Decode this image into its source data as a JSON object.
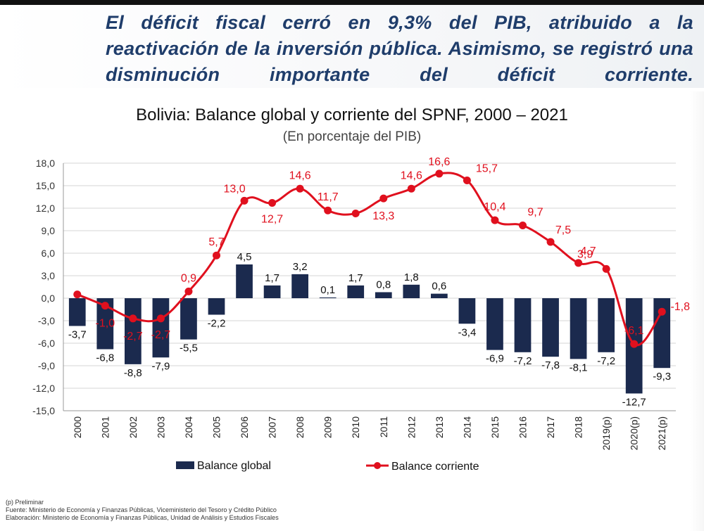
{
  "headline": "El déficit fiscal cerró en 9,3% del PIB, atribuido a la reactivación de la inversión pública. Asimismo, se registró una disminución importante del déficit corriente.",
  "footnotes": {
    "preliminar": "(p) Preliminar",
    "fuente": "Fuente: Ministerio de Economía y Finanzas Públicas, Viceministerio del Tesoro y Crédito Público",
    "elaboracion": "Elaboración: Ministerio de Economía y Finanzas Públicas, Unidad de Análisis y Estudios Fiscales"
  },
  "colors": {
    "global_bar": "#1b2a4e",
    "corriente_line": "#e0101e",
    "headline": "#1f3d6b"
  },
  "chart_data": {
    "type": "bar",
    "title": "Bolivia: Balance global y corriente del SPNF, 2000 – 2021",
    "subtitle": "(En porcentaje del PIB)",
    "categories": [
      "2000",
      "2001",
      "2002",
      "2003",
      "2004",
      "2005",
      "2006",
      "2007",
      "2008",
      "2009",
      "2010",
      "2011",
      "2012",
      "2013",
      "2014",
      "2015",
      "2016",
      "2017",
      "2018",
      "2019(p)",
      "2020(p)",
      "2021(p)"
    ],
    "series": [
      {
        "name": "Balance global",
        "type": "bar",
        "color": "#1b2a4e",
        "values": [
          -3.7,
          -6.8,
          -8.8,
          -7.9,
          -5.5,
          -2.2,
          4.5,
          1.7,
          3.2,
          0.1,
          1.7,
          0.8,
          1.8,
          0.6,
          -3.4,
          -6.9,
          -7.2,
          -7.8,
          -8.1,
          -7.2,
          -12.7,
          -9.3
        ],
        "labels": [
          "-3,7",
          "-6,8",
          "-8,8",
          "-7,9",
          "-5,5",
          "-2,2",
          "4,5",
          "1,7",
          "3,2",
          "0,1",
          "1,7",
          "0,8",
          "1,8",
          "0,6",
          "-3,4",
          "-6,9",
          "-7,2",
          "-7,8",
          "-8,1",
          "-7,2",
          "-12,7",
          "-9,3"
        ]
      },
      {
        "name": "Balance corriente",
        "type": "line",
        "color": "#e0101e",
        "values": [
          0.5,
          -1.0,
          -2.7,
          -2.7,
          0.9,
          5.7,
          13.0,
          12.7,
          14.6,
          11.7,
          11.3,
          13.3,
          14.6,
          16.6,
          15.7,
          10.4,
          9.7,
          7.5,
          4.7,
          3.9,
          -6.1,
          -1.8
        ],
        "labels": [
          "",
          "-1,0",
          "-2,7",
          "-2,7",
          "0,9",
          "5,7",
          "13,0",
          "12,7",
          "14,6",
          "11,7",
          "",
          "13,3",
          "14,6",
          "16,6",
          "15,7",
          "10,4",
          "9,7",
          "7,5",
          "4,7",
          "3,9",
          "-6,1",
          "-1,8"
        ]
      }
    ],
    "yticks": [
      "18,0",
      "15,0",
      "12,0",
      "9,0",
      "6,0",
      "3,0",
      "0,0",
      "-3,0",
      "-6,0",
      "-9,0",
      "-12,0",
      "-15,0"
    ],
    "ylim": [
      -15,
      18
    ],
    "grid": true,
    "legend_position": "bottom"
  }
}
